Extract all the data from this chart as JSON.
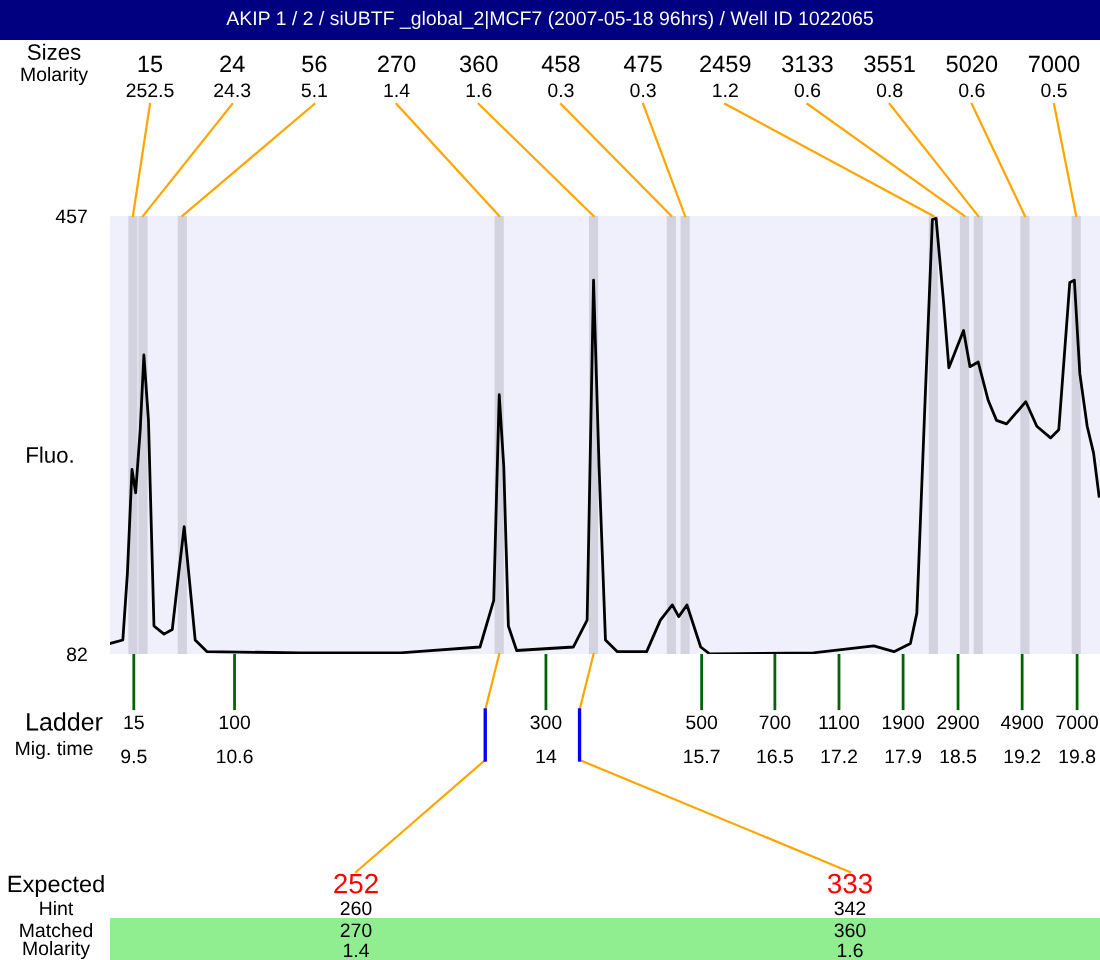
{
  "chart_data": {
    "type": "line",
    "title": "AKIP 1 / 2 / siUBTF _global_2|MCF7 (2007-05-18 96hrs) / Well ID 1022065",
    "xlabel": "Mig. time",
    "ylabel": "Fluo.",
    "xlim": [
      9.24,
      20.05
    ],
    "ylim": [
      82,
      457
    ],
    "yticks": [
      82,
      457
    ],
    "xticks": [
      9.5,
      10.6,
      14,
      15.7,
      16.5,
      17.2,
      17.9,
      18.5,
      19.2,
      19.8
    ],
    "x": [
      9.24,
      9.38,
      9.43,
      9.48,
      9.52,
      9.57,
      9.61,
      9.66,
      9.72,
      9.83,
      9.92,
      9.99,
      10.05,
      10.1,
      10.17,
      10.3,
      11.32,
      12.41,
      13.28,
      13.43,
      13.49,
      13.54,
      13.59,
      13.68,
      14.3,
      14.45,
      14.52,
      14.58,
      14.65,
      14.78,
      15.1,
      15.25,
      15.38,
      15.45,
      15.54,
      15.69,
      15.79,
      16.92,
      17.58,
      17.8,
      17.98,
      18.05,
      18.14,
      18.22,
      18.26,
      18.34,
      18.4,
      18.56,
      18.63,
      18.72,
      18.83,
      18.92,
      19.03,
      19.24,
      19.36,
      19.51,
      19.6,
      19.72,
      19.77,
      19.83,
      19.91,
      19.98,
      20.04
    ],
    "series": [
      {
        "color": "#000000",
        "values": [
          91,
          94,
          151,
          240,
          220,
          274,
          338,
          282,
          106,
          99,
          103,
          151,
          191,
          151,
          94,
          84,
          83,
          83,
          88,
          128,
          304,
          242,
          106,
          85,
          88,
          111,
          402,
          243,
          94,
          84,
          84,
          111,
          124,
          114,
          124,
          88,
          82,
          83,
          89,
          84,
          91,
          117,
          299,
          454,
          455,
          385,
          327,
          359,
          328,
          332,
          299,
          282,
          279,
          298,
          277,
          267,
          274,
          400,
          402,
          322,
          277,
          254,
          217
        ]
      }
    ],
    "bands": [
      {
        "axis": "x",
        "from": 9.44,
        "to": 9.54,
        "color": "#d3d3e0"
      },
      {
        "axis": "x",
        "from": 9.55,
        "to": 9.65,
        "color": "#d3d3e0"
      },
      {
        "axis": "x",
        "from": 9.98,
        "to": 10.08,
        "color": "#d3d3e0"
      },
      {
        "axis": "x",
        "from": 13.44,
        "to": 13.54,
        "color": "#d3d3e0"
      },
      {
        "axis": "x",
        "from": 14.47,
        "to": 14.57,
        "color": "#d3d3e0"
      },
      {
        "axis": "x",
        "from": 15.32,
        "to": 15.42,
        "color": "#d3d3e0"
      },
      {
        "axis": "x",
        "from": 15.47,
        "to": 15.57,
        "color": "#d3d3e0"
      },
      {
        "axis": "x",
        "from": 18.18,
        "to": 18.28,
        "color": "#d3d3e0"
      },
      {
        "axis": "x",
        "from": 18.52,
        "to": 18.62,
        "color": "#d3d3e0"
      },
      {
        "axis": "x",
        "from": 18.67,
        "to": 18.77,
        "color": "#d3d3e0"
      },
      {
        "axis": "x",
        "from": 19.18,
        "to": 19.28,
        "color": "#d3d3e0"
      },
      {
        "axis": "x",
        "from": 19.74,
        "to": 19.84,
        "color": "#d3d3e0"
      }
    ],
    "annotations": [
      "Sizes",
      "Molarity",
      "Ladder",
      "Expected",
      "Hint",
      "Matched",
      "Molarity",
      "15",
      "24",
      "56",
      "270",
      "360",
      "458",
      "475",
      "2459",
      "3133",
      "3551",
      "5020",
      "7000",
      "252.5",
      "24.3",
      "5.1",
      "1.4",
      "1.6",
      "0.3",
      "0.3",
      "1.2",
      "0.6",
      "0.8",
      "0.6",
      "0.5",
      "15",
      "100",
      "300",
      "500",
      "700",
      "1100",
      "1900",
      "2900",
      "4900",
      "7000",
      "260",
      "270",
      "1.4",
      "342",
      "360",
      "1.6",
      {
        "text": "252",
        "x": 13.49,
        "y": 82
      },
      {
        "text": "333",
        "x": 14.52,
        "y": 82
      }
    ]
  }
}
